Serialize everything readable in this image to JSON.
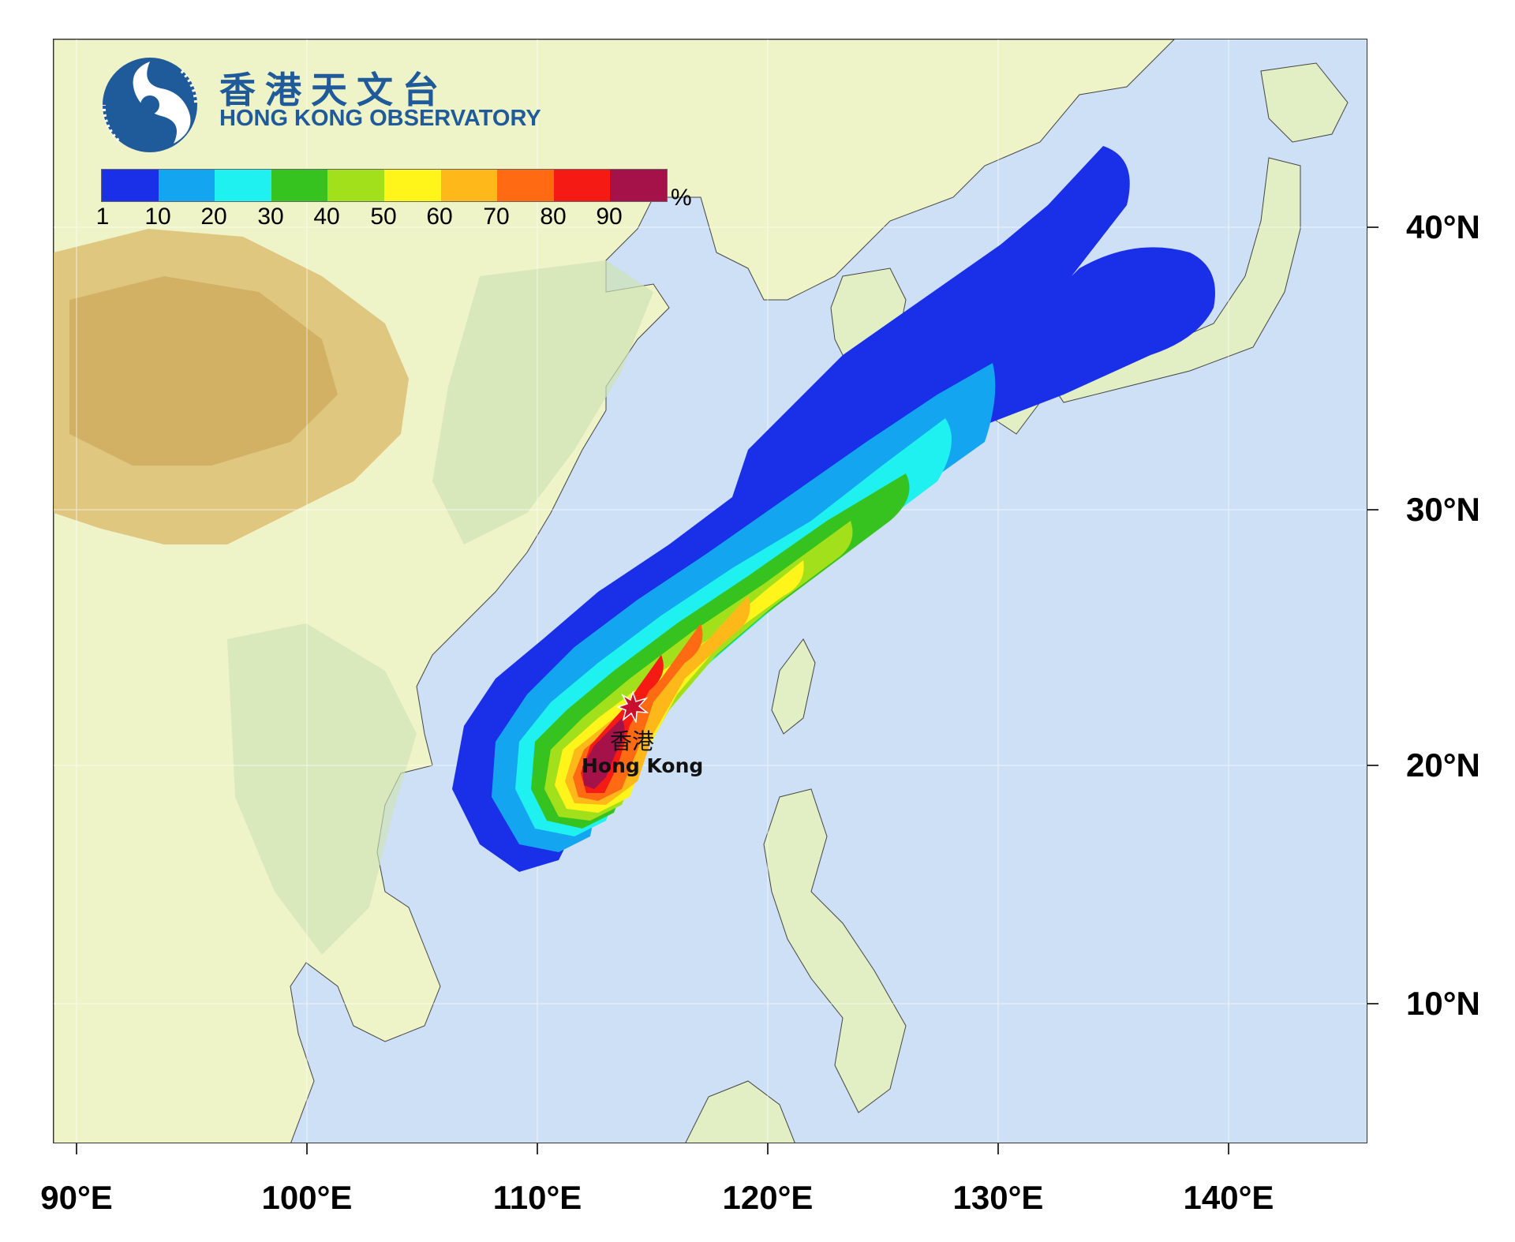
{
  "logo": {
    "name_zh": "香港天文台",
    "name_en": "HONG KONG OBSERVATORY",
    "brand_color": "#1f5a9a",
    "icon": "hko-logo-icon"
  },
  "legend": {
    "tick_labels": [
      "1",
      "10",
      "20",
      "30",
      "40",
      "50",
      "60",
      "70",
      "80",
      "90"
    ],
    "unit": "%",
    "colors": [
      "#1a2fe8",
      "#14a5f0",
      "#1ff0f0",
      "#36c21f",
      "#a3e01c",
      "#fff51a",
      "#ffb81a",
      "#ff6a12",
      "#f51a14",
      "#a5124a"
    ]
  },
  "axes": {
    "longitude_labels": [
      "90°E",
      "100°E",
      "110°E",
      "120°E",
      "130°E",
      "140°E"
    ],
    "latitude_labels": [
      "40°N",
      "30°N",
      "20°N",
      "10°N"
    ]
  },
  "location_marker": {
    "name_zh": "香港",
    "name_en": "Hong Kong",
    "lon": 114.2,
    "lat": 22.3,
    "icon": "star-icon",
    "color": "#c8102e"
  },
  "map": {
    "extent_lon": [
      89,
      146
    ],
    "extent_lat": [
      5,
      46
    ],
    "ocean_color": "#cde0f6",
    "land_color": "#eef3c8",
    "highland_color": "#d6b366"
  }
}
